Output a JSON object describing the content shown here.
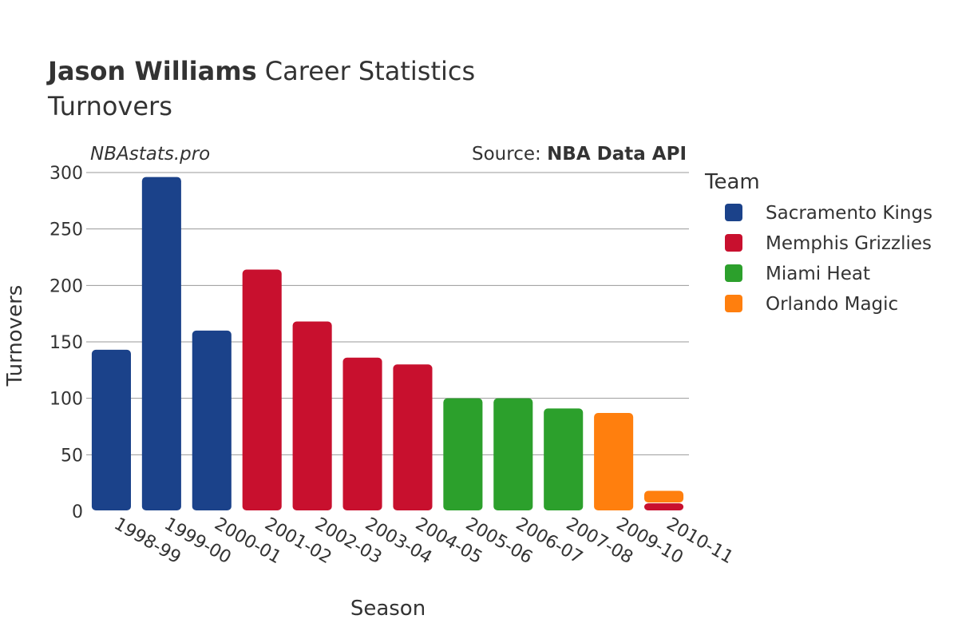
{
  "title": {
    "bold": "Jason Williams",
    "rest": " Career Statistics",
    "subtitle": "Turnovers"
  },
  "watermark": "NBAstats.pro",
  "source": {
    "prefix": "Source: ",
    "name": "NBA Data API"
  },
  "legend": {
    "title": "Team",
    "placement": "right"
  },
  "colors": {
    "Sacramento Kings": "#1b428a",
    "Memphis Grizzlies": "#c8102e",
    "Miami Heat": "#2ca02c",
    "Orlando Magic": "#ff7f0e"
  },
  "chart_data": {
    "type": "bar",
    "stacked": true,
    "xlabel": "Season",
    "ylabel": "Turnovers",
    "ylim": [
      0,
      300
    ],
    "yticks": [
      0,
      50,
      100,
      150,
      200,
      250,
      300
    ],
    "grid": true,
    "categories": [
      "1998-99",
      "1999-00",
      "2000-01",
      "2001-02",
      "2002-03",
      "2003-04",
      "2004-05",
      "2005-06",
      "2006-07",
      "2007-08",
      "2009-10",
      "2010-11"
    ],
    "series": [
      {
        "name": "Sacramento Kings",
        "values": [
          143,
          296,
          160,
          0,
          0,
          0,
          0,
          0,
          0,
          0,
          0,
          0
        ]
      },
      {
        "name": "Memphis Grizzlies",
        "values": [
          0,
          0,
          0,
          214,
          168,
          136,
          130,
          0,
          0,
          0,
          0,
          7
        ]
      },
      {
        "name": "Miami Heat",
        "values": [
          0,
          0,
          0,
          0,
          0,
          0,
          0,
          100,
          100,
          91,
          0,
          0
        ]
      },
      {
        "name": "Orlando Magic",
        "values": [
          0,
          0,
          0,
          0,
          0,
          0,
          0,
          0,
          0,
          0,
          87,
          11
        ]
      }
    ]
  }
}
